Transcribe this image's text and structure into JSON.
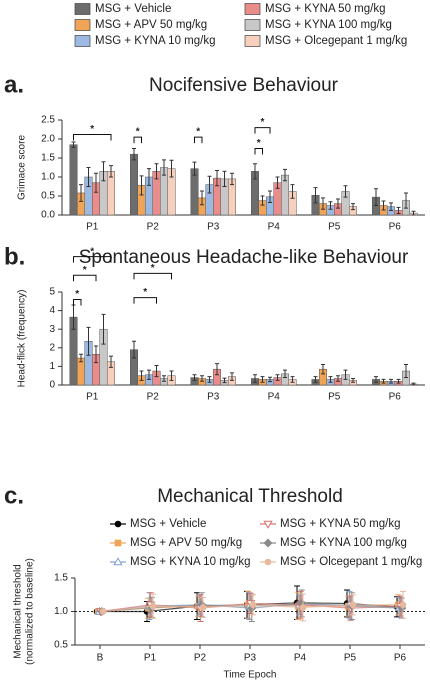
{
  "chart_data": [
    {
      "type": "bar",
      "panel_label": "a.",
      "title": "Nocifensive Behaviour",
      "y_label": "Grimace score",
      "legend": "top",
      "categories": [
        "P1",
        "P2",
        "P3",
        "P4",
        "P5",
        "P6"
      ],
      "ylim": [
        0,
        2.5
      ],
      "yticks": [
        {
          "value": 0,
          "label": "0.0"
        },
        0.5,
        {
          "value": 1,
          "label": "1.0"
        },
        1.5,
        {
          "value": 2,
          "label": "2.0"
        },
        2.5
      ],
      "series": [
        {
          "name": "MSG + Vehicle",
          "color": "#6d6d6d",
          "values": [
            1.85,
            1.6,
            1.22,
            1.15,
            0.52,
            0.47
          ],
          "errors": [
            0.07,
            0.15,
            0.17,
            0.2,
            0.2,
            0.22
          ]
        },
        {
          "name": "MSG + APV 50 mg/kg",
          "color": "#f0a458",
          "values": [
            0.58,
            0.78,
            0.45,
            0.38,
            0.3,
            0.25
          ],
          "errors": [
            0.22,
            0.25,
            0.18,
            0.12,
            0.15,
            0.12
          ]
        },
        {
          "name": "MSG + KYNA 10 mg/kg",
          "color": "#9cb9e2",
          "values": [
            1.0,
            1.0,
            0.8,
            0.48,
            0.25,
            0.22
          ],
          "errors": [
            0.25,
            0.22,
            0.22,
            0.15,
            0.1,
            0.1
          ]
        },
        {
          "name": "MSG + KYNA 50 mg/kg",
          "color": "#e98c8a",
          "values": [
            0.85,
            1.15,
            0.97,
            0.85,
            0.3,
            0.12
          ],
          "errors": [
            0.25,
            0.2,
            0.2,
            0.15,
            0.12,
            0.08
          ]
        },
        {
          "name": "MSG + KYNA 100 mg/kg",
          "color": "#c8c8c8",
          "values": [
            1.15,
            1.25,
            0.95,
            1.05,
            0.62,
            0.38
          ],
          "errors": [
            0.25,
            0.2,
            0.2,
            0.15,
            0.15,
            0.2
          ]
        },
        {
          "name": "MSG + Olcegepant 1 mg/kg",
          "color": "#f6d0bc",
          "values": [
            1.15,
            1.22,
            0.95,
            0.62,
            0.22,
            0.05
          ],
          "errors": [
            0.15,
            0.22,
            0.15,
            0.18,
            0.08,
            0.05
          ]
        }
      ],
      "annotations": [
        "*",
        "*",
        "*",
        "*",
        "*"
      ]
    },
    {
      "type": "bar",
      "panel_label": "b.",
      "title": "Spontaneous Headache-like Behaviour",
      "y_label": "Head-flick (frequency)",
      "categories": [
        "P1",
        "P2",
        "P3",
        "P4",
        "P5",
        "P6"
      ],
      "ylim": [
        0,
        5
      ],
      "yticks": [
        0,
        1,
        2,
        3,
        4,
        5
      ],
      "series": [
        {
          "color": "#6d6d6d",
          "values": [
            3.65,
            1.9,
            0.4,
            0.35,
            0.3,
            0.3
          ],
          "errors": [
            0.65,
            0.45,
            0.15,
            0.2,
            0.15,
            0.15
          ]
        },
        {
          "color": "#f0a458",
          "values": [
            1.45,
            0.5,
            0.35,
            0.3,
            0.85,
            0.2
          ],
          "errors": [
            0.2,
            0.25,
            0.15,
            0.15,
            0.25,
            0.1
          ]
        },
        {
          "color": "#9cb9e2",
          "values": [
            2.35,
            0.55,
            0.3,
            0.3,
            0.3,
            0.2
          ],
          "errors": [
            0.75,
            0.25,
            0.15,
            0.12,
            0.15,
            0.1
          ]
        },
        {
          "color": "#e98c8a",
          "values": [
            1.65,
            0.75,
            0.85,
            0.4,
            0.35,
            0.2
          ],
          "errors": [
            0.45,
            0.3,
            0.3,
            0.15,
            0.15,
            0.1
          ]
        },
        {
          "color": "#c8c8c8",
          "values": [
            3.0,
            0.35,
            0.25,
            0.6,
            0.55,
            0.75
          ],
          "errors": [
            0.8,
            0.15,
            0.12,
            0.2,
            0.25,
            0.35
          ]
        },
        {
          "color": "#f6d0bc",
          "values": [
            1.25,
            0.5,
            0.45,
            0.3,
            0.25,
            0.05
          ],
          "errors": [
            0.3,
            0.25,
            0.2,
            0.15,
            0.1,
            0.05
          ]
        }
      ],
      "annotations": [
        "*",
        "*",
        "*",
        "*",
        "*"
      ]
    },
    {
      "type": "line",
      "panel_label": "c.",
      "title": "Mechanical Threshold",
      "y_label": [
        "Mechanical threshold",
        "(normalized to baseline)"
      ],
      "x_label": "Time Epoch",
      "legend": "upper",
      "categories": [
        "B",
        "P1",
        "P2",
        "P3",
        "P4",
        "P5",
        "P6"
      ],
      "ylim": [
        0.5,
        1.5
      ],
      "yticks": [
        0.5,
        {
          "value": 1,
          "label": "1.0"
        },
        1.5
      ],
      "series": [
        {
          "name": "MSG + Vehicle",
          "color": "#000000",
          "marker": "circle",
          "values": [
            1.0,
            1.0,
            1.08,
            1.1,
            1.13,
            1.12,
            1.07
          ],
          "errors": [
            0,
            0.15,
            0.2,
            0.2,
            0.25,
            0.2,
            0.15
          ]
        },
        {
          "name": "MSG + APV 50 mg/kg",
          "color": "#f0a458",
          "marker": "square",
          "values": [
            1.0,
            1.05,
            1.08,
            1.1,
            1.08,
            1.08,
            1.1
          ],
          "errors": [
            0,
            0.15,
            0.15,
            0.2,
            0.2,
            0.15,
            0.15
          ]
        },
        {
          "name": "MSG + KYNA 10 mg/kg",
          "color": "#7f9fd0",
          "marker": "triangle-up",
          "values": [
            1.0,
            1.08,
            1.1,
            1.08,
            1.1,
            1.1,
            1.06
          ],
          "errors": [
            0,
            0.2,
            0.15,
            0.2,
            0.15,
            0.2,
            0.15
          ]
        },
        {
          "name": "MSG + KYNA 50 mg/kg",
          "color": "#d9706e",
          "marker": "triangle-down",
          "values": [
            1.0,
            1.1,
            1.05,
            1.12,
            1.1,
            1.05,
            1.08
          ],
          "errors": [
            0,
            0.18,
            0.2,
            0.15,
            0.2,
            0.18,
            0.15
          ]
        },
        {
          "name": "MSG + KYNA 100 mg/kg",
          "color": "#8a8a8a",
          "marker": "diamond",
          "values": [
            1.0,
            1.06,
            1.1,
            1.05,
            1.12,
            1.08,
            1.05
          ],
          "errors": [
            0,
            0.15,
            0.18,
            0.2,
            0.2,
            0.2,
            0.15
          ]
        },
        {
          "name": "MSG + Olcegepant 1 mg/kg",
          "color": "#e8b89e",
          "marker": "circle",
          "values": [
            1.0,
            1.08,
            1.06,
            1.1,
            1.06,
            1.1,
            1.1
          ],
          "errors": [
            0,
            0.18,
            0.15,
            0.15,
            0.2,
            0.15,
            0.2
          ]
        }
      ]
    }
  ]
}
